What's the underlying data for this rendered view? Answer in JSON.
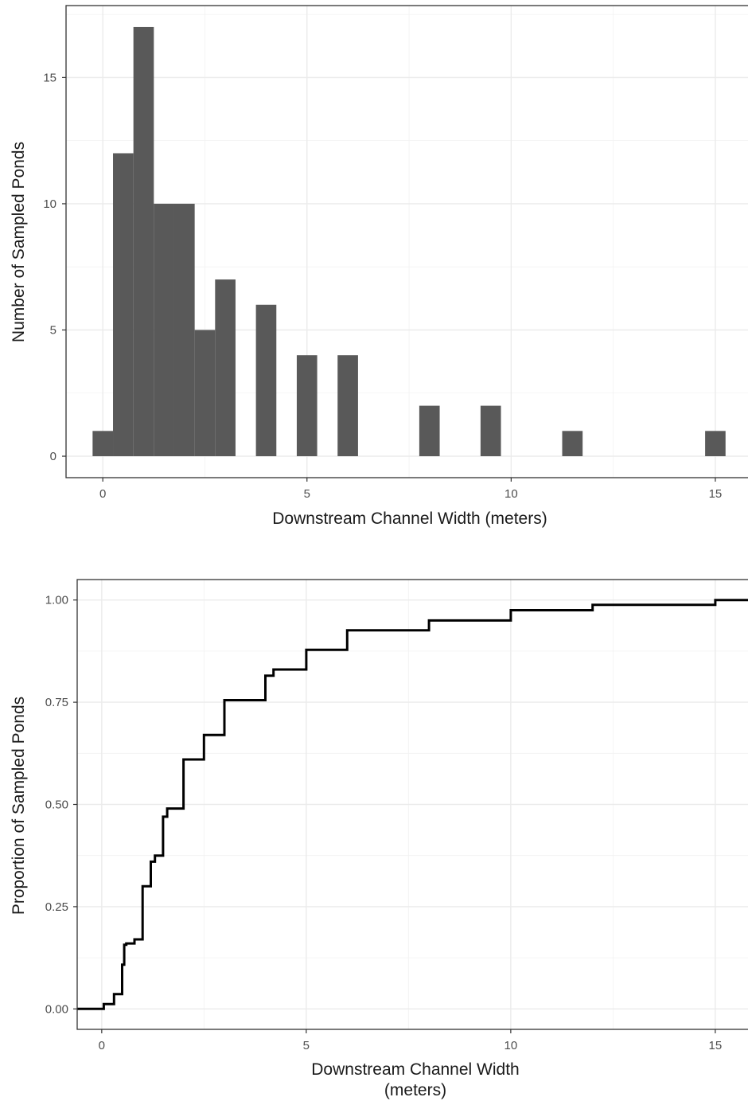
{
  "chart_data": [
    {
      "type": "bar",
      "subtype": "histogram",
      "bin_width": 0.5,
      "bins": [
        {
          "x": 0.0,
          "count": 1
        },
        {
          "x": 0.5,
          "count": 12
        },
        {
          "x": 1.0,
          "count": 17
        },
        {
          "x": 1.5,
          "count": 10
        },
        {
          "x": 2.0,
          "count": 10
        },
        {
          "x": 2.5,
          "count": 5
        },
        {
          "x": 3.0,
          "count": 7
        },
        {
          "x": 4.0,
          "count": 6
        },
        {
          "x": 5.0,
          "count": 4
        },
        {
          "x": 6.0,
          "count": 4
        },
        {
          "x": 8.0,
          "count": 2
        },
        {
          "x": 9.5,
          "count": 2
        },
        {
          "x": 11.5,
          "count": 1
        },
        {
          "x": 15.0,
          "count": 1
        }
      ],
      "xlabel": "Downstream Channel Width (meters)",
      "ylabel": "Number of Sampled Ponds",
      "xlim": [
        -0.9,
        15.8
      ],
      "ylim": [
        -0.85,
        17.85
      ],
      "xticks": [
        "0",
        "5",
        "10",
        "15"
      ],
      "yticks": [
        "0",
        "5",
        "10",
        "15"
      ],
      "bar_color": "#595959",
      "grid": true
    },
    {
      "type": "line",
      "subtype": "step-ecdf",
      "x": [
        -0.6,
        0.0,
        0.05,
        0.3,
        0.5,
        0.55,
        0.6,
        0.8,
        1.0,
        1.2,
        1.3,
        1.5,
        1.6,
        2.0,
        2.5,
        3.0,
        4.0,
        4.2,
        5.0,
        6.0,
        8.0,
        10.0,
        12.0,
        15.0,
        15.8
      ],
      "y": [
        0.0,
        0.0,
        0.012,
        0.036,
        0.108,
        0.157,
        0.16,
        0.17,
        0.3,
        0.36,
        0.375,
        0.47,
        0.49,
        0.61,
        0.67,
        0.755,
        0.815,
        0.83,
        0.878,
        0.926,
        0.95,
        0.975,
        0.988,
        1.0,
        1.0
      ],
      "xlabel_lines": [
        "Downstream Channel Width",
        "(meters)"
      ],
      "ylabel": "Proportion of Sampled Ponds",
      "xlim": [
        -0.6,
        15.8
      ],
      "ylim": [
        -0.05,
        1.05
      ],
      "xticks": [
        "0",
        "5",
        "10",
        "15"
      ],
      "yticks": [
        "0.00",
        "0.25",
        "0.50",
        "0.75",
        "1.00"
      ],
      "line_color": "#000000",
      "grid": true
    }
  ]
}
